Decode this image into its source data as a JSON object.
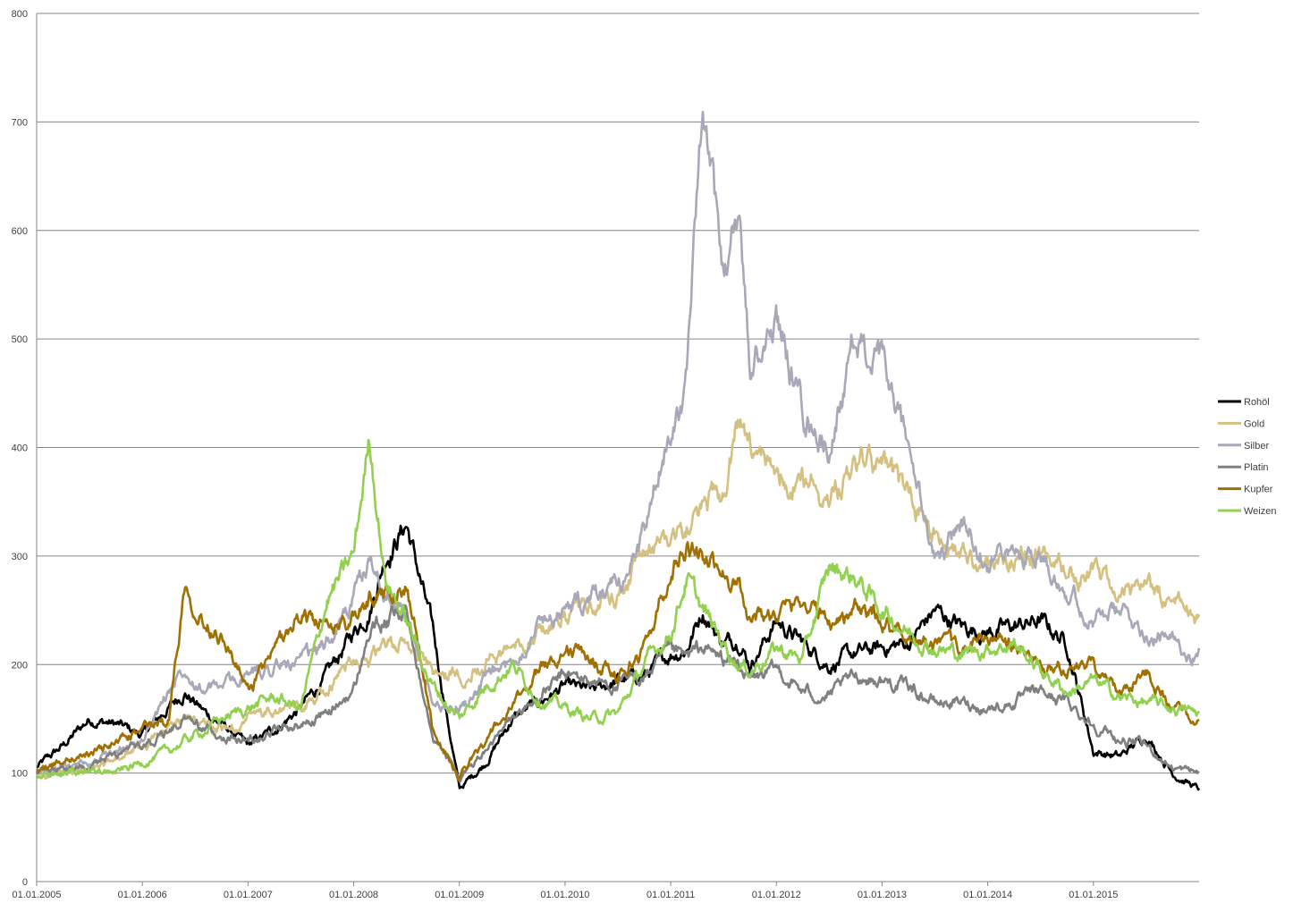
{
  "chart_data": {
    "type": "line",
    "title": "",
    "xlabel": "",
    "ylabel": "",
    "ylim": [
      0,
      800
    ],
    "yticks": [
      0,
      100,
      200,
      300,
      400,
      500,
      600,
      700,
      800
    ],
    "xlim": [
      "2005-01-01",
      "2015-12-31"
    ],
    "xticks": [
      "01.01.2005",
      "01.01.2006",
      "01.01.2007",
      "01.01.2008",
      "01.01.2009",
      "01.01.2010",
      "01.01.2011",
      "01.01.2012",
      "01.01.2013",
      "01.01.2014",
      "01.01.2015"
    ],
    "grid": "horizontal",
    "legend": "right",
    "x": [
      2005.0,
      2005.25,
      2005.5,
      2005.75,
      2006.0,
      2006.25,
      2006.4,
      2006.6,
      2006.75,
      2007.0,
      2007.25,
      2007.5,
      2007.75,
      2008.0,
      2008.15,
      2008.3,
      2008.5,
      2008.75,
      2009.0,
      2009.25,
      2009.5,
      2009.75,
      2010.0,
      2010.25,
      2010.5,
      2010.75,
      2011.0,
      2011.15,
      2011.3,
      2011.5,
      2011.65,
      2011.75,
      2012.0,
      2012.25,
      2012.5,
      2012.75,
      2013.0,
      2013.25,
      2013.5,
      2013.75,
      2014.0,
      2014.25,
      2014.5,
      2014.75,
      2015.0,
      2015.25,
      2015.5,
      2015.75,
      2016.0
    ],
    "series": [
      {
        "name": "Rohöl",
        "color": "#000000",
        "values": [
          105,
          125,
          150,
          145,
          135,
          160,
          175,
          155,
          145,
          125,
          140,
          160,
          190,
          230,
          250,
          300,
          330,
          230,
          85,
          110,
          150,
          165,
          180,
          175,
          185,
          190,
          210,
          215,
          250,
          220,
          225,
          200,
          240,
          220,
          200,
          210,
          215,
          220,
          250,
          235,
          230,
          235,
          240,
          220,
          120,
          115,
          135,
          100,
          85
        ]
      },
      {
        "name": "Gold",
        "color": "#d4c080",
        "values": [
          98,
          100,
          102,
          110,
          125,
          140,
          150,
          145,
          140,
          150,
          155,
          160,
          175,
          210,
          205,
          215,
          220,
          190,
          190,
          205,
          215,
          230,
          245,
          250,
          265,
          300,
          320,
          325,
          345,
          360,
          425,
          390,
          380,
          370,
          360,
          385,
          380,
          355,
          320,
          300,
          290,
          300,
          300,
          285,
          280,
          265,
          270,
          260,
          245
        ]
      },
      {
        "name": "Silber",
        "color": "#a8a8b8",
        "values": [
          100,
          105,
          110,
          120,
          130,
          175,
          200,
          175,
          180,
          190,
          200,
          200,
          220,
          260,
          295,
          270,
          245,
          160,
          160,
          185,
          200,
          240,
          250,
          260,
          270,
          320,
          420,
          460,
          700,
          560,
          620,
          470,
          520,
          430,
          400,
          500,
          470,
          400,
          290,
          330,
          300,
          300,
          305,
          270,
          240,
          250,
          230,
          220,
          210
        ]
      },
      {
        "name": "Platin",
        "color": "#808080",
        "values": [
          100,
          102,
          108,
          115,
          125,
          140,
          150,
          140,
          135,
          130,
          140,
          145,
          155,
          175,
          230,
          240,
          245,
          140,
          95,
          120,
          150,
          170,
          190,
          185,
          180,
          190,
          210,
          205,
          215,
          205,
          200,
          185,
          195,
          175,
          170,
          190,
          185,
          180,
          165,
          165,
          160,
          165,
          175,
          165,
          145,
          130,
          125,
          105,
          100
        ]
      },
      {
        "name": "Kupfer",
        "color": "#a07000",
        "values": [
          100,
          112,
          118,
          128,
          140,
          150,
          275,
          240,
          230,
          175,
          210,
          250,
          230,
          240,
          260,
          270,
          275,
          140,
          95,
          130,
          160,
          195,
          215,
          205,
          190,
          215,
          290,
          310,
          295,
          285,
          275,
          245,
          245,
          260,
          240,
          250,
          240,
          225,
          215,
          215,
          225,
          215,
          200,
          195,
          200,
          175,
          195,
          160,
          145
        ]
      },
      {
        "name": "Weizen",
        "color": "#92d050",
        "values": [
          95,
          100,
          105,
          100,
          110,
          120,
          130,
          140,
          150,
          160,
          170,
          160,
          260,
          300,
          410,
          280,
          240,
          180,
          150,
          180,
          200,
          170,
          160,
          150,
          155,
          200,
          230,
          280,
          250,
          220,
          200,
          195,
          215,
          205,
          290,
          280,
          250,
          230,
          215,
          210,
          215,
          220,
          195,
          175,
          185,
          170,
          165,
          160,
          155
        ]
      }
    ]
  }
}
